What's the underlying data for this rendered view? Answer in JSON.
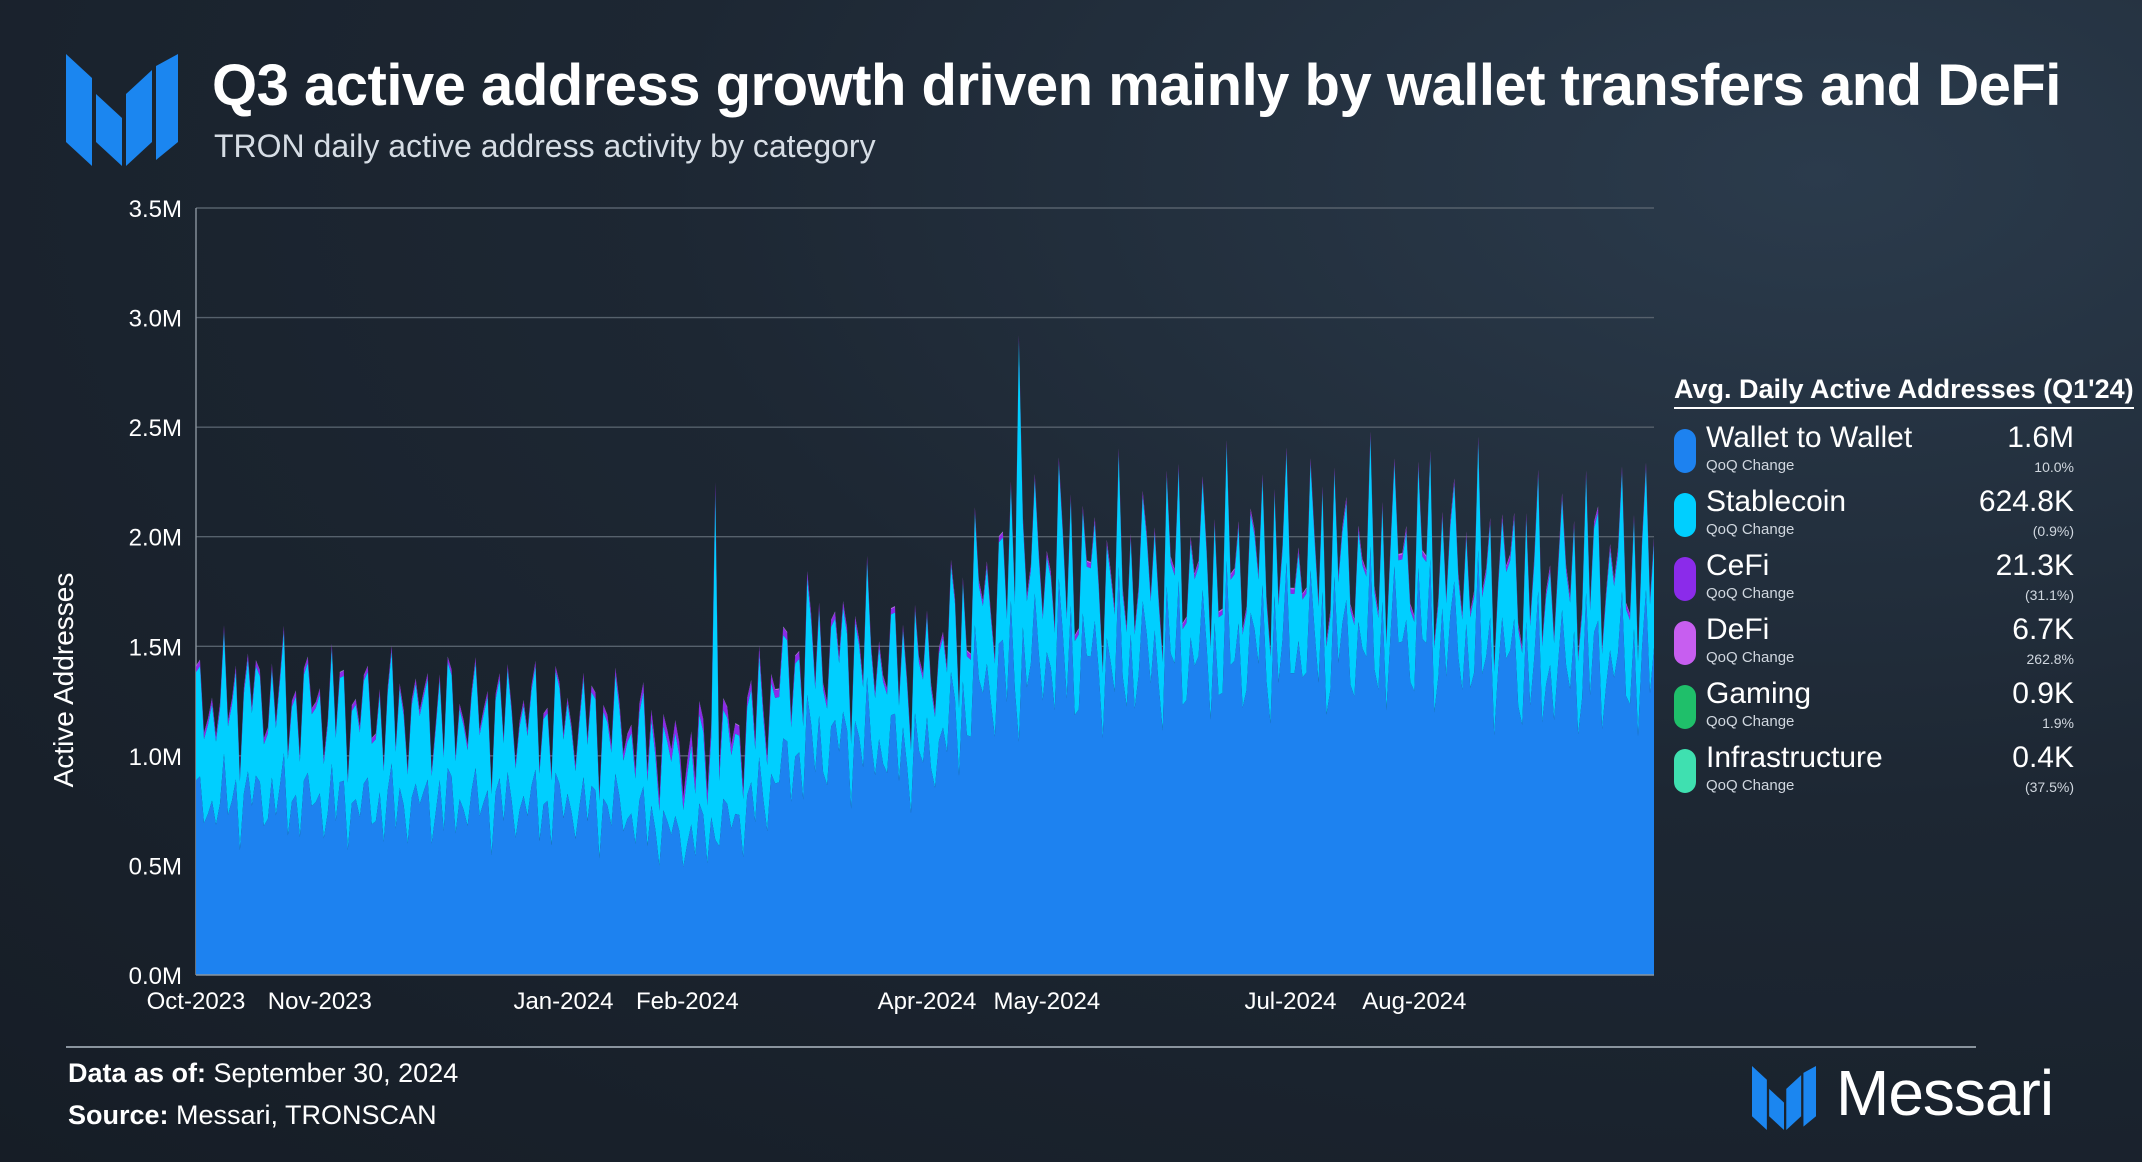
{
  "title": "Q3 active address growth driven mainly by wallet transfers and DeFi",
  "subtitle": "TRON daily active address activity by category",
  "brand_name": "Messari",
  "footer": {
    "data_as_of_label": "Data as of:",
    "data_as_of_value": " September 30, 2024",
    "source_label": "Source:",
    "source_value": " Messari, TRONSCAN"
  },
  "legend": {
    "title": "Avg. Daily Active Addresses (Q1'24)",
    "sub_label": "QoQ Change",
    "items": [
      {
        "name": "Wallet to Wallet",
        "value": "1.6M",
        "change": "10.0%",
        "color": "#1d82f0"
      },
      {
        "name": "Stablecoin",
        "value": "624.8K",
        "change": "(0.9%)",
        "color": "#00cfff"
      },
      {
        "name": "CeFi",
        "value": "21.3K",
        "change": "(31.1%)",
        "color": "#8b2bea"
      },
      {
        "name": "DeFi",
        "value": "6.7K",
        "change": "262.8%",
        "color": "#c75ef0"
      },
      {
        "name": "Gaming",
        "value": "0.9K",
        "change": "1.9%",
        "color": "#1fbf6a"
      },
      {
        "name": "Infrastructure",
        "value": "0.4K",
        "change": "(37.5%)",
        "color": "#3fe0b0"
      }
    ]
  },
  "chart_data": {
    "type": "area",
    "stacked": true,
    "title": "Q3 active address growth driven mainly by wallet transfers and DeFi",
    "subtitle": "TRON daily active address activity by category",
    "ylabel": "Active Addresses",
    "xlabel": "",
    "ylim": [
      0,
      3500000
    ],
    "yticks": [
      0,
      500000,
      1000000,
      1500000,
      2000000,
      2500000,
      3000000,
      3500000
    ],
    "ytick_labels": [
      "0.0M",
      "0.5M",
      "1.0M",
      "1.5M",
      "2.0M",
      "2.5M",
      "3.0M",
      "3.5M"
    ],
    "xtick_labels": [
      "Oct-2023",
      "Nov-2023",
      "Jan-2024",
      "Feb-2024",
      "Apr-2024",
      "May-2024",
      "Jul-2024",
      "Aug-2024"
    ],
    "xtick_dates": [
      "2023-10-01",
      "2023-11-01",
      "2024-01-01",
      "2024-02-01",
      "2024-04-01",
      "2024-05-01",
      "2024-07-01",
      "2024-08-01"
    ],
    "x_range": [
      "2023-10-01",
      "2024-09-30"
    ],
    "grid": "horizontal",
    "legend_position": "right",
    "series_order": [
      "Wallet to Wallet",
      "Stablecoin",
      "CeFi",
      "DeFi",
      "Gaming",
      "Infrastructure"
    ],
    "weekly_anchors": {
      "dates": [
        "2023-10-01",
        "2023-10-15",
        "2023-11-01",
        "2023-11-15",
        "2023-12-01",
        "2023-12-15",
        "2024-01-01",
        "2024-01-15",
        "2024-02-01",
        "2024-02-15",
        "2024-03-01",
        "2024-03-15",
        "2024-04-01",
        "2024-04-15",
        "2024-05-01",
        "2024-05-15",
        "2024-06-01",
        "2024-06-15",
        "2024-07-01",
        "2024-07-15",
        "2024-08-01",
        "2024-08-15",
        "2024-09-01",
        "2024-09-15",
        "2024-09-30"
      ],
      "wallet_to_wallet": [
        900000,
        950000,
        920000,
        900000,
        920000,
        910000,
        900000,
        880000,
        720000,
        850000,
        1200000,
        1250000,
        1150000,
        1550000,
        1700000,
        1650000,
        1700000,
        1700000,
        1750000,
        1750000,
        1800000,
        1750000,
        1600000,
        1650000,
        1650000
      ],
      "stablecoin": [
        500000,
        520000,
        500000,
        480000,
        470000,
        460000,
        450000,
        430000,
        380000,
        420000,
        500000,
        480000,
        450000,
        480000,
        500000,
        450000,
        480000,
        470000,
        460000,
        450000,
        440000,
        430000,
        480000,
        500000,
        520000
      ],
      "cefi": [
        25000,
        24000,
        23000,
        22000,
        22000,
        21000,
        21000,
        30000,
        60000,
        40000,
        30000,
        25000,
        22000,
        22000,
        22000,
        21000,
        21000,
        20000,
        20000,
        21000,
        21000,
        21000,
        22000,
        22000,
        21000
      ],
      "defi": [
        4000,
        4000,
        4000,
        4000,
        4000,
        4000,
        4000,
        4000,
        4000,
        5000,
        5000,
        5000,
        5000,
        6000,
        6000,
        7000,
        7000,
        7000,
        7000,
        7000,
        8000,
        8000,
        8000,
        8000,
        8000
      ],
      "gaming": [
        1000,
        1000,
        1000,
        1000,
        900,
        900,
        900,
        900,
        900,
        900,
        900,
        900,
        900,
        900,
        900,
        900,
        900,
        900,
        900,
        900,
        900,
        900,
        900,
        900,
        900
      ],
      "infrastructure": [
        600,
        600,
        600,
        600,
        600,
        500,
        500,
        500,
        500,
        500,
        500,
        500,
        400,
        400,
        400,
        400,
        400,
        400,
        400,
        400,
        400,
        400,
        400,
        400,
        400
      ]
    },
    "notable_spikes": [
      {
        "date": "2024-02-08",
        "total": 2250000
      },
      {
        "date": "2024-04-24",
        "total": 2920000
      }
    ]
  }
}
